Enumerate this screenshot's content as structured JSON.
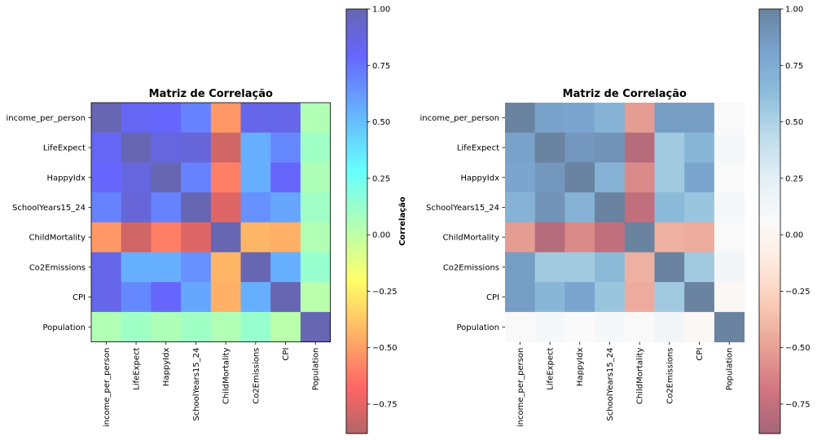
{
  "chart_data": [
    {
      "type": "heatmap",
      "title": "Matriz de Correlação",
      "colormap": "jet_r",
      "cell_alpha": 0.6,
      "labels": [
        "income_per_person",
        "LifeExpect",
        "HappyIdx",
        "SchoolYears15_24",
        "ChildMortality",
        "Co2Emissions",
        "CPI",
        "Population"
      ],
      "matrix": [
        [
          1.0,
          0.82,
          0.8,
          0.7,
          -0.52,
          0.85,
          0.85,
          0.05
        ],
        [
          0.82,
          1.0,
          0.88,
          0.9,
          -0.8,
          0.55,
          0.68,
          0.1
        ],
        [
          0.8,
          0.88,
          1.0,
          0.7,
          -0.6,
          0.55,
          0.8,
          0.06
        ],
        [
          0.7,
          0.9,
          0.7,
          1.0,
          -0.76,
          0.65,
          0.58,
          0.1
        ],
        [
          -0.52,
          -0.8,
          -0.6,
          -0.76,
          1.0,
          -0.43,
          -0.45,
          0.05
        ],
        [
          0.85,
          0.55,
          0.55,
          0.65,
          -0.43,
          1.0,
          0.55,
          0.13
        ],
        [
          0.85,
          0.68,
          0.8,
          0.58,
          -0.45,
          0.55,
          1.0,
          0.02
        ],
        [
          0.05,
          0.1,
          0.06,
          0.1,
          0.05,
          0.13,
          0.02,
          1.0
        ]
      ],
      "colorbar": {
        "label": "Correlação",
        "range": [
          -0.88,
          1.0
        ],
        "ticks": [
          1.0,
          0.75,
          0.5,
          0.25,
          0.0,
          -0.25,
          -0.5,
          -0.75
        ],
        "tick_labels": [
          "1.00",
          "0.75",
          "0.50",
          "0.25",
          "0.00",
          "−0.25",
          "−0.50",
          "−0.75"
        ]
      }
    },
    {
      "type": "heatmap",
      "title": "Matriz de Correlação",
      "colormap": "RdBu",
      "cell_alpha": 0.6,
      "labels": [
        "income_per_person",
        "LifeExpect",
        "HappyIdx",
        "SchoolYears15_24",
        "ChildMortality",
        "Co2Emissions",
        "CPI",
        "Population"
      ],
      "matrix": [
        [
          1.0,
          0.82,
          0.8,
          0.7,
          -0.52,
          0.85,
          0.85,
          0.05
        ],
        [
          0.82,
          1.0,
          0.88,
          0.9,
          -0.8,
          0.55,
          0.68,
          0.1
        ],
        [
          0.8,
          0.88,
          1.0,
          0.7,
          -0.6,
          0.55,
          0.8,
          0.06
        ],
        [
          0.7,
          0.9,
          0.7,
          1.0,
          -0.76,
          0.65,
          0.58,
          0.1
        ],
        [
          -0.52,
          -0.8,
          -0.6,
          -0.76,
          1.0,
          -0.43,
          -0.45,
          0.05
        ],
        [
          0.85,
          0.55,
          0.55,
          0.65,
          -0.43,
          1.0,
          0.55,
          0.13
        ],
        [
          0.85,
          0.68,
          0.8,
          0.58,
          -0.45,
          0.55,
          1.0,
          0.02
        ],
        [
          0.05,
          0.1,
          0.06,
          0.1,
          0.05,
          0.13,
          0.02,
          1.0
        ]
      ],
      "colorbar": {
        "label": "",
        "range": [
          -0.88,
          1.0
        ],
        "ticks": [
          1.0,
          0.75,
          0.5,
          0.25,
          0.0,
          -0.25,
          -0.5,
          -0.75
        ],
        "tick_labels": [
          "1.00",
          "0.75",
          "0.50",
          "0.25",
          "0.00",
          "−0.25",
          "−0.50",
          "−0.75"
        ]
      }
    }
  ]
}
